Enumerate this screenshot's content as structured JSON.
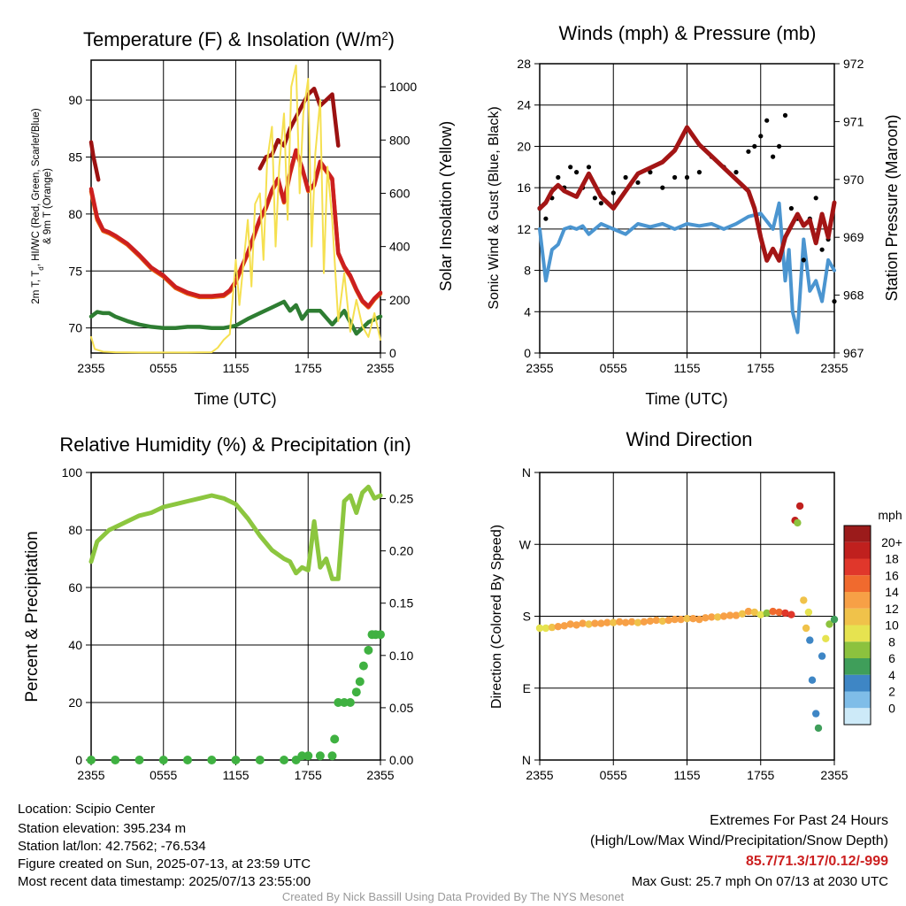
{
  "chart_data": [
    {
      "id": "temp",
      "type": "line",
      "title": "Temperature (F) & Insolation (W/m",
      "title_sup": "2",
      "title_close": ")",
      "xlabel": "Time (UTC)",
      "ylabel_lines": [
        "2m T, T",
        "d",
        ", HI/WC (Red, Green, Scarlet/Blue)",
        "& 9m T (Orange)"
      ],
      "ylabel_right": "Solar Insolation (Yellow)",
      "x_ticks": [
        "2355",
        "0555",
        "1155",
        "1755",
        "2355"
      ],
      "x_range": [
        0,
        24
      ],
      "ylim": [
        67.8,
        93.5
      ],
      "y_ticks": [
        70,
        75,
        80,
        85,
        90
      ],
      "ylim_right": [
        0,
        1100
      ],
      "y_ticks_right": [
        0,
        200,
        400,
        600,
        800,
        1000
      ],
      "grid": true,
      "series": [
        {
          "color": "#2e7d32",
          "axis": "left",
          "x": [
            0,
            0.5,
            1,
            1.5,
            2,
            3,
            4,
            5,
            6,
            7,
            8,
            9,
            10,
            11,
            12,
            13,
            14,
            15,
            16,
            16.5,
            17,
            17.5,
            18,
            19,
            20,
            21,
            22,
            23,
            24
          ],
          "y": [
            71,
            71.4,
            71.3,
            71.3,
            71,
            70.6,
            70.3,
            70.1,
            70,
            70,
            70.1,
            70.1,
            70,
            70,
            70.2,
            70.8,
            71.3,
            71.8,
            72.3,
            71.5,
            72,
            70.8,
            71.5,
            71.5,
            70.3,
            71.5,
            69.5,
            70.5,
            71
          ]
        },
        {
          "color": "#e8600a",
          "axis": "left",
          "x": [
            0,
            0.5,
            1,
            1.5,
            2,
            3,
            4,
            5,
            6,
            7,
            8,
            9,
            10,
            11,
            11.5,
            12,
            12.5,
            13,
            13.5,
            14,
            14.5,
            15,
            15.5,
            16,
            16.5,
            17,
            17.5,
            18,
            18.5,
            19,
            20,
            20.5,
            21,
            21.5,
            22,
            22.5,
            23,
            23.5,
            24
          ],
          "y": [
            82,
            79.5,
            78.5,
            78.3,
            78,
            77.3,
            76.3,
            75.2,
            74.5,
            73.5,
            73,
            72.7,
            72.7,
            72.8,
            73.2,
            74,
            75.3,
            76.5,
            78,
            79.5,
            80.5,
            82,
            83,
            81,
            83.5,
            85.5,
            84,
            82,
            82.5,
            84.5,
            83,
            76.5,
            75.3,
            74.5,
            73.3,
            72.3,
            71.8,
            72.5,
            73
          ]
        },
        {
          "color": "#cc1f1f",
          "axis": "left",
          "x": [
            0,
            0.5,
            1,
            1.5,
            2,
            3,
            4,
            5,
            6,
            7,
            8,
            9,
            10,
            11,
            11.5,
            12,
            12.5,
            13,
            13.5,
            14,
            14.5,
            15,
            15.5,
            16,
            16.5,
            17,
            17.5,
            18,
            18.5,
            19,
            20,
            20.5,
            21,
            21.5,
            22,
            22.5,
            23,
            23.5,
            24
          ],
          "y": [
            82.2,
            79.7,
            78.6,
            78.4,
            78.1,
            77.4,
            76.4,
            75.3,
            74.6,
            73.6,
            73.1,
            72.8,
            72.8,
            72.9,
            73.3,
            74.1,
            75.4,
            76.6,
            78.1,
            79.6,
            80.6,
            82.1,
            83.1,
            81.1,
            83.6,
            85.6,
            84.1,
            82.1,
            82.6,
            84.6,
            83.1,
            76.6,
            75.4,
            74.6,
            73.4,
            72.4,
            71.9,
            72.6,
            73.1
          ]
        },
        {
          "color": "#9b1111",
          "axis": "left",
          "x": [
            0,
            0.2,
            0.4,
            0.6
          ],
          "y": [
            86.3,
            85,
            84,
            83
          ]
        },
        {
          "color": "#9b1111",
          "axis": "left",
          "x": [
            14,
            14.5,
            15,
            15.5,
            16,
            16.5,
            17,
            17.5,
            18,
            18.5,
            19,
            19.5,
            20,
            20.5
          ],
          "y": [
            84,
            85,
            85.2,
            86.5,
            86,
            87.5,
            88.5,
            89.5,
            90.5,
            91,
            89.5,
            90,
            90.5,
            86
          ]
        },
        {
          "color": "#f5e050",
          "axis": "right",
          "x": [
            0,
            0.3,
            1,
            2,
            4,
            6,
            8,
            10,
            10.5,
            11,
            11.5,
            12,
            12.3,
            12.6,
            13,
            13.3,
            13.6,
            14,
            14.3,
            14.6,
            15,
            15.3,
            15.6,
            16,
            16.3,
            16.6,
            17,
            17.3,
            17.6,
            18,
            18.3,
            18.6,
            19,
            19.3,
            19.6,
            20,
            20.5,
            21,
            21.5,
            22,
            22.5,
            23,
            23.5,
            24
          ],
          "y": [
            60,
            15,
            5,
            3,
            2,
            2,
            2,
            3,
            20,
            50,
            70,
            350,
            180,
            320,
            500,
            250,
            560,
            600,
            350,
            720,
            850,
            400,
            700,
            900,
            500,
            1000,
            1080,
            600,
            900,
            1030,
            400,
            750,
            950,
            300,
            700,
            500,
            120,
            300,
            80,
            200,
            100,
            60,
            150,
            50
          ]
        }
      ]
    },
    {
      "id": "wind",
      "type": "line",
      "title": "Winds (mph) & Pressure (mb)",
      "xlabel": "Time (UTC)",
      "ylabel": "Sonic Wind & Gust (Blue, Black)",
      "ylabel_right": "Station Pressure (Maroon)",
      "x_ticks": [
        "2355",
        "0555",
        "1155",
        "1755",
        "2355"
      ],
      "x_range": [
        0,
        24
      ],
      "ylim": [
        0,
        28
      ],
      "y_ticks": [
        0,
        4,
        8,
        12,
        16,
        20,
        24,
        28
      ],
      "ylim_right": [
        967,
        972
      ],
      "y_ticks_right": [
        967,
        968,
        969,
        970,
        971,
        972
      ],
      "grid": true,
      "wind": {
        "x": [
          0,
          0.5,
          1,
          1.5,
          2,
          2.5,
          3,
          3.5,
          4,
          5,
          6,
          7,
          8,
          9,
          10,
          11,
          12,
          13,
          14,
          15,
          16,
          17,
          18,
          19,
          19.5,
          20,
          20.3,
          20.6,
          21,
          21.5,
          22,
          22.5,
          23,
          23.5,
          24
        ],
        "y": [
          12,
          7,
          10,
          10.5,
          12,
          12.2,
          12,
          12.3,
          11.5,
          12.5,
          12,
          11.5,
          12.5,
          12.2,
          12.5,
          12,
          12.5,
          12.3,
          12.5,
          12,
          12.5,
          13.2,
          13.5,
          12,
          14.5,
          7,
          10,
          4,
          2,
          11,
          6,
          7,
          5,
          9,
          8
        ]
      },
      "gust": {
        "x": [
          0,
          0.5,
          1,
          1.5,
          2,
          2.5,
          3,
          3.5,
          4,
          4.5,
          5,
          6,
          7,
          8,
          9,
          10,
          11,
          12,
          13,
          14,
          15,
          16,
          17,
          17.5,
          18,
          18.5,
          19,
          19.5,
          20,
          20.5,
          21,
          21.5,
          22,
          22.5,
          23,
          23.5,
          24
        ],
        "y": [
          14,
          13,
          15,
          17,
          16,
          18,
          17.5,
          16,
          18,
          15,
          14.5,
          15.5,
          17,
          16.5,
          17.5,
          16,
          17,
          17,
          17.5,
          19,
          18,
          17.5,
          19.5,
          20,
          21,
          22.5,
          19,
          20,
          23,
          14,
          13,
          9,
          13,
          15,
          10,
          11,
          5
        ]
      },
      "pressure": {
        "x": [
          0,
          0.5,
          1,
          1.5,
          2,
          3,
          4,
          5,
          6,
          7,
          8,
          9,
          10,
          11,
          12,
          13,
          14,
          15,
          16,
          17,
          17.5,
          18,
          18.5,
          19,
          19.5,
          20,
          20.5,
          21,
          21.5,
          22,
          22.5,
          23,
          23.5,
          24
        ],
        "y": [
          969.5,
          969.6,
          969.8,
          969.9,
          969.8,
          969.7,
          970.1,
          969.7,
          969.5,
          969.8,
          970.1,
          970.2,
          970.3,
          970.5,
          970.9,
          970.6,
          970.4,
          970.2,
          970.0,
          969.8,
          969.5,
          969.0,
          968.6,
          968.8,
          968.6,
          969.0,
          969.2,
          969.4,
          969.2,
          969.3,
          968.9,
          969.4,
          969.0,
          969.6
        ]
      }
    },
    {
      "id": "rh",
      "type": "line",
      "title": "Relative Humidity (%) & Precipitation (in)",
      "ylabel": "Percent & Precipitation",
      "x_ticks": [
        "2355",
        "0555",
        "1155",
        "1755",
        "2355"
      ],
      "x_range": [
        0,
        24
      ],
      "ylim": [
        0,
        100
      ],
      "y_ticks": [
        0,
        20,
        40,
        60,
        80,
        100
      ],
      "ylim_right": [
        0,
        0.275
      ],
      "y_ticks_right": [
        0.0,
        0.05,
        0.1,
        0.15,
        0.2,
        0.25
      ],
      "y_tick_labels_right": [
        "0.00",
        "0.05",
        "0.10",
        "0.15",
        "0.20",
        "0.25"
      ],
      "grid": true,
      "humidity": {
        "x": [
          0,
          0.5,
          1,
          1.5,
          2,
          3,
          4,
          5,
          6,
          7,
          8,
          9,
          10,
          11,
          12,
          13,
          14,
          15,
          16,
          16.5,
          17,
          17.5,
          18,
          18.5,
          19,
          19.5,
          20,
          20.5,
          21,
          21.5,
          22,
          22.5,
          23,
          23.5,
          24
        ],
        "y": [
          69,
          76,
          78,
          80,
          81,
          83,
          85,
          86,
          88,
          89,
          90,
          91,
          92,
          91,
          89,
          84,
          78,
          73,
          70,
          69,
          65,
          67,
          66,
          83,
          67,
          70,
          63,
          63,
          90,
          92,
          86,
          93,
          95,
          91,
          92
        ]
      },
      "precip": {
        "x": [
          0,
          2,
          4,
          6,
          8,
          10,
          12,
          14,
          16,
          17,
          17.5,
          18,
          19,
          20,
          20.2,
          20.5,
          21,
          21.5,
          22,
          22.3,
          22.6,
          23,
          23.3,
          23.6,
          24
        ],
        "y": [
          0,
          0,
          0,
          0,
          0,
          0,
          0,
          0,
          0,
          0,
          0.004,
          0.004,
          0.004,
          0.004,
          0.02,
          0.055,
          0.055,
          0.055,
          0.065,
          0.075,
          0.09,
          0.105,
          0.12,
          0.12,
          0.12
        ]
      }
    },
    {
      "id": "dir",
      "type": "scatter",
      "title": "Wind Direction",
      "ylabel": "Direction (Colored By Speed)",
      "x_ticks": [
        "2355",
        "0555",
        "1155",
        "1755",
        "2355"
      ],
      "x_range": [
        0,
        24
      ],
      "ylim": [
        0,
        360
      ],
      "y_ticks": [
        0,
        90,
        180,
        270,
        360
      ],
      "y_tick_labels": [
        "N",
        "E",
        "S",
        "W",
        "N"
      ],
      "grid": true,
      "legend_title": "mph",
      "legend_labels": [
        "20+",
        "18",
        "16",
        "14",
        "12",
        "10",
        "8",
        "6",
        "4",
        "2",
        "0"
      ],
      "legend_colors": [
        "#9b1b1b",
        "#c0201e",
        "#e0372b",
        "#f06a2e",
        "#f7a046",
        "#f0c24a",
        "#e6e350",
        "#8cc23e",
        "#3f9e5a",
        "#3e86c5",
        "#7fbde8",
        "#cdeaf8"
      ],
      "points": [
        [
          0,
          165,
          8
        ],
        [
          0.5,
          165,
          9
        ],
        [
          1,
          166,
          11
        ],
        [
          1.5,
          167,
          12
        ],
        [
          2,
          168,
          13
        ],
        [
          2.5,
          170,
          12
        ],
        [
          3,
          169,
          13
        ],
        [
          3.5,
          171,
          12
        ],
        [
          4,
          170,
          11
        ],
        [
          4.5,
          171,
          12
        ],
        [
          5,
          171,
          13
        ],
        [
          5.5,
          172,
          12
        ],
        [
          6,
          172,
          11
        ],
        [
          6.5,
          173,
          12
        ],
        [
          7,
          172,
          13
        ],
        [
          7.5,
          173,
          12
        ],
        [
          8,
          172,
          11
        ],
        [
          8.5,
          173,
          12
        ],
        [
          9,
          174,
          13
        ],
        [
          9.5,
          175,
          12
        ],
        [
          10,
          174,
          11
        ],
        [
          10.5,
          175,
          12
        ],
        [
          11,
          176,
          13
        ],
        [
          11.5,
          176,
          12
        ],
        [
          12,
          177,
          11
        ],
        [
          12.5,
          177,
          12
        ],
        [
          13,
          176,
          12
        ],
        [
          13.5,
          178,
          13
        ],
        [
          14,
          179,
          12
        ],
        [
          14.5,
          179,
          11
        ],
        [
          15,
          180,
          12
        ],
        [
          15.5,
          181,
          13
        ],
        [
          16,
          181,
          12
        ],
        [
          16.5,
          183,
          11
        ],
        [
          17,
          186,
          12
        ],
        [
          17.5,
          185,
          10
        ],
        [
          18,
          182,
          9
        ],
        [
          18.5,
          184,
          7
        ],
        [
          19,
          186,
          14
        ],
        [
          19.5,
          185,
          15
        ],
        [
          20,
          184,
          16
        ],
        [
          20.5,
          182,
          17
        ],
        [
          20.8,
          300,
          18
        ],
        [
          21,
          297,
          7
        ],
        [
          21.2,
          318,
          19
        ],
        [
          21.5,
          200,
          10
        ],
        [
          21.7,
          165,
          10
        ],
        [
          21.9,
          185,
          8
        ],
        [
          22,
          150,
          2
        ],
        [
          22.2,
          100,
          3
        ],
        [
          22.5,
          58,
          2
        ],
        [
          22.7,
          40,
          4
        ],
        [
          23,
          130,
          2
        ],
        [
          23.3,
          152,
          9
        ],
        [
          23.6,
          170,
          6
        ],
        [
          24,
          176,
          5
        ]
      ]
    }
  ],
  "footer": {
    "location": "Location: Scipio Center",
    "elevation": "Station elevation: 395.234 m",
    "latlon": "Station lat/lon: 42.7562; -76.534",
    "created": "Figure created on Sun, 2025-07-13, at 23:59 UTC",
    "recent": "Most recent data timestamp: 2025/07/13 23:55:00",
    "extremes_title": "Extremes For Past 24 Hours",
    "extremes_desc": "(High/Low/Max Wind/Precipitation/Snow Depth)",
    "extremes_values": "85.7/71.3/17/0.12/-999",
    "max_gust": "Max Gust: 25.7 mph On 07/13 at 2030 UTC",
    "credit": "Created By Nick Bassill Using Data Provided By The NYS Mesonet"
  },
  "colors": {
    "wind_blue": "#4b95d0",
    "gust_black": "#000000",
    "pressure_maroon": "#a31515",
    "humidity_green": "#8cc63f",
    "precip_green": "#3fb141",
    "extremes_red": "#cc1f1f",
    "credit_gray": "#999999"
  }
}
